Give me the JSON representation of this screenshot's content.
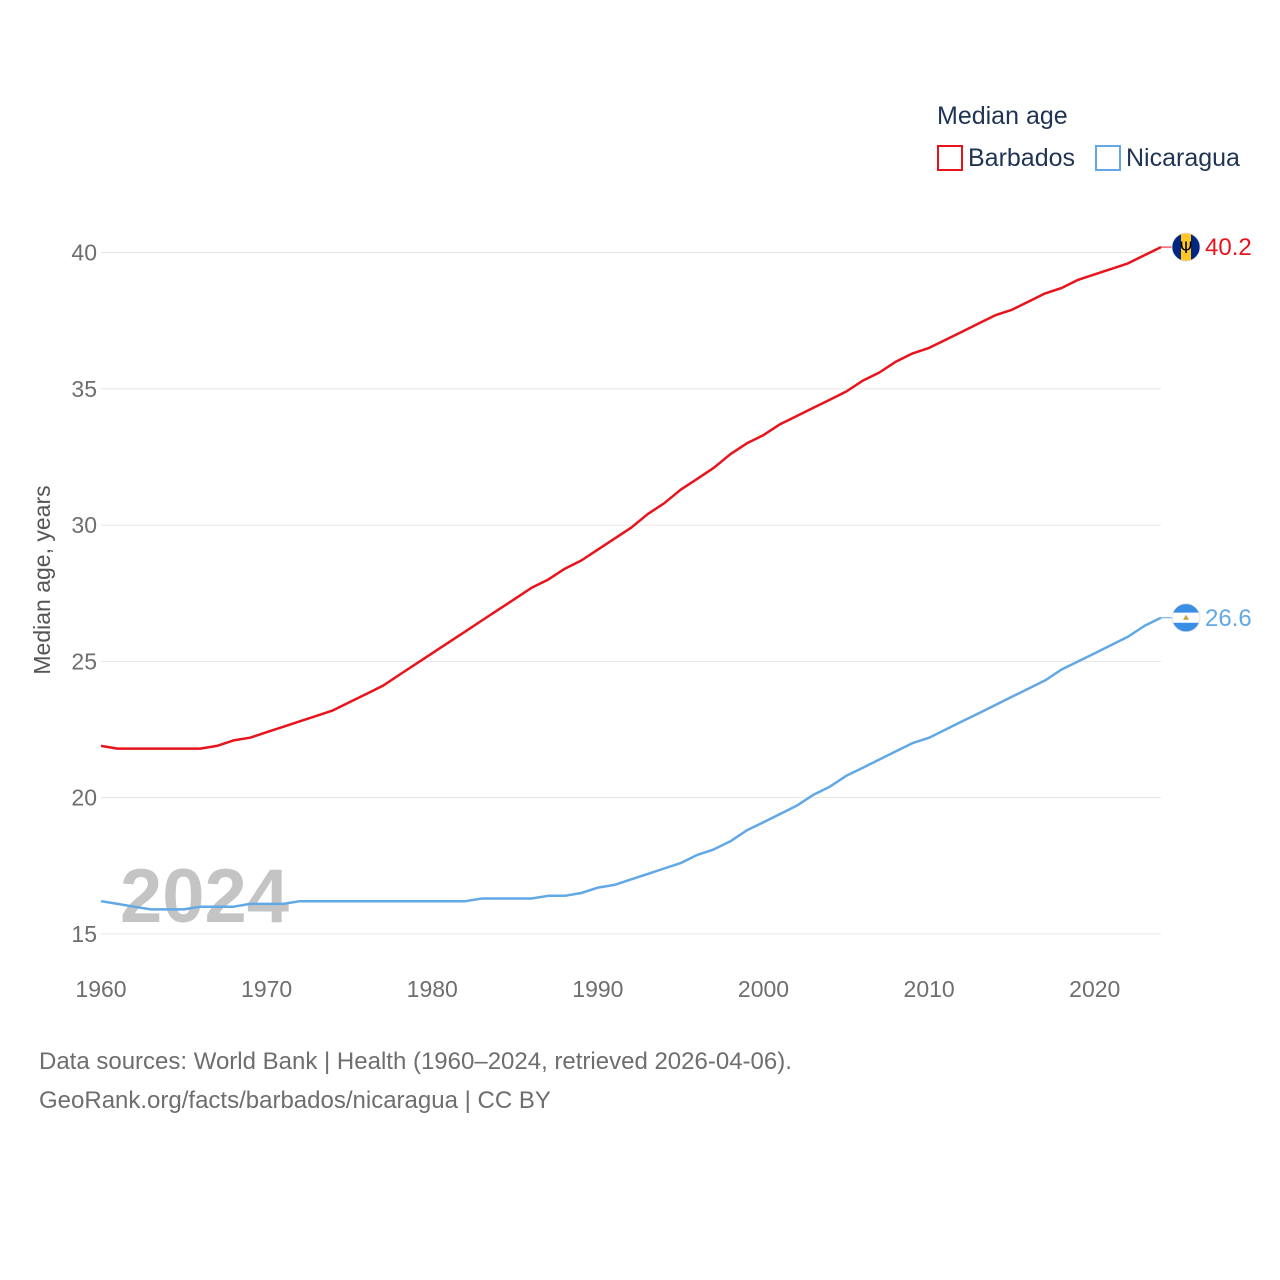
{
  "legend": {
    "title": "Median age",
    "items": [
      {
        "name": "Barbados",
        "color": "#e8141c"
      },
      {
        "name": "Nicaragua",
        "color": "#62a8e5"
      }
    ]
  },
  "year_label": "2024",
  "footer": {
    "line1": "Data sources: World Bank | Health (1960–2024, retrieved 2026-04-06).",
    "line2": "GeoRank.org/facts/barbados/nicaragua | CC BY"
  },
  "chart_data": {
    "type": "line",
    "title": "Median age",
    "xlabel": "",
    "ylabel": "Median age, years",
    "xlim": [
      1960,
      2024
    ],
    "ylim": [
      14.3,
      40.9
    ],
    "yticks": [
      15,
      20,
      25,
      30,
      35,
      40
    ],
    "xticks": [
      1960,
      1970,
      1980,
      1990,
      2000,
      2010,
      2020
    ],
    "grid": true,
    "legend_position": "top-right",
    "x": [
      1960,
      1961,
      1962,
      1963,
      1964,
      1965,
      1966,
      1967,
      1968,
      1969,
      1970,
      1971,
      1972,
      1973,
      1974,
      1975,
      1976,
      1977,
      1978,
      1979,
      1980,
      1981,
      1982,
      1983,
      1984,
      1985,
      1986,
      1987,
      1988,
      1989,
      1990,
      1991,
      1992,
      1993,
      1994,
      1995,
      1996,
      1997,
      1998,
      1999,
      2000,
      2001,
      2002,
      2003,
      2004,
      2005,
      2006,
      2007,
      2008,
      2009,
      2010,
      2011,
      2012,
      2013,
      2014,
      2015,
      2016,
      2017,
      2018,
      2019,
      2020,
      2021,
      2022,
      2023,
      2024
    ],
    "series": [
      {
        "name": "Barbados",
        "color": "#e8141c",
        "end_label": "40.2",
        "flag": "barbados-flag",
        "values": [
          21.9,
          21.8,
          21.8,
          21.8,
          21.8,
          21.8,
          21.8,
          21.9,
          22.1,
          22.2,
          22.4,
          22.6,
          22.8,
          23.0,
          23.2,
          23.5,
          23.8,
          24.1,
          24.5,
          24.9,
          25.3,
          25.7,
          26.1,
          26.5,
          26.9,
          27.3,
          27.7,
          28.0,
          28.4,
          28.7,
          29.1,
          29.5,
          29.9,
          30.4,
          30.8,
          31.3,
          31.7,
          32.1,
          32.6,
          33.0,
          33.3,
          33.7,
          34.0,
          34.3,
          34.6,
          34.9,
          35.3,
          35.6,
          36.0,
          36.3,
          36.5,
          36.8,
          37.1,
          37.4,
          37.7,
          37.9,
          38.2,
          38.5,
          38.7,
          39.0,
          39.2,
          39.4,
          39.6,
          39.9,
          40.2
        ]
      },
      {
        "name": "Nicaragua",
        "color": "#62a8e5",
        "end_label": "26.6",
        "flag": "nicaragua-flag",
        "values": [
          16.2,
          16.1,
          16.0,
          15.9,
          15.9,
          15.9,
          16.0,
          16.0,
          16.0,
          16.1,
          16.1,
          16.1,
          16.2,
          16.2,
          16.2,
          16.2,
          16.2,
          16.2,
          16.2,
          16.2,
          16.2,
          16.2,
          16.2,
          16.3,
          16.3,
          16.3,
          16.3,
          16.4,
          16.4,
          16.5,
          16.7,
          16.8,
          17.0,
          17.2,
          17.4,
          17.6,
          17.9,
          18.1,
          18.4,
          18.8,
          19.1,
          19.4,
          19.7,
          20.1,
          20.4,
          20.8,
          21.1,
          21.4,
          21.7,
          22.0,
          22.2,
          22.5,
          22.8,
          23.1,
          23.4,
          23.7,
          24.0,
          24.3,
          24.7,
          25.0,
          25.3,
          25.6,
          25.9,
          26.3,
          26.6
        ]
      }
    ]
  }
}
